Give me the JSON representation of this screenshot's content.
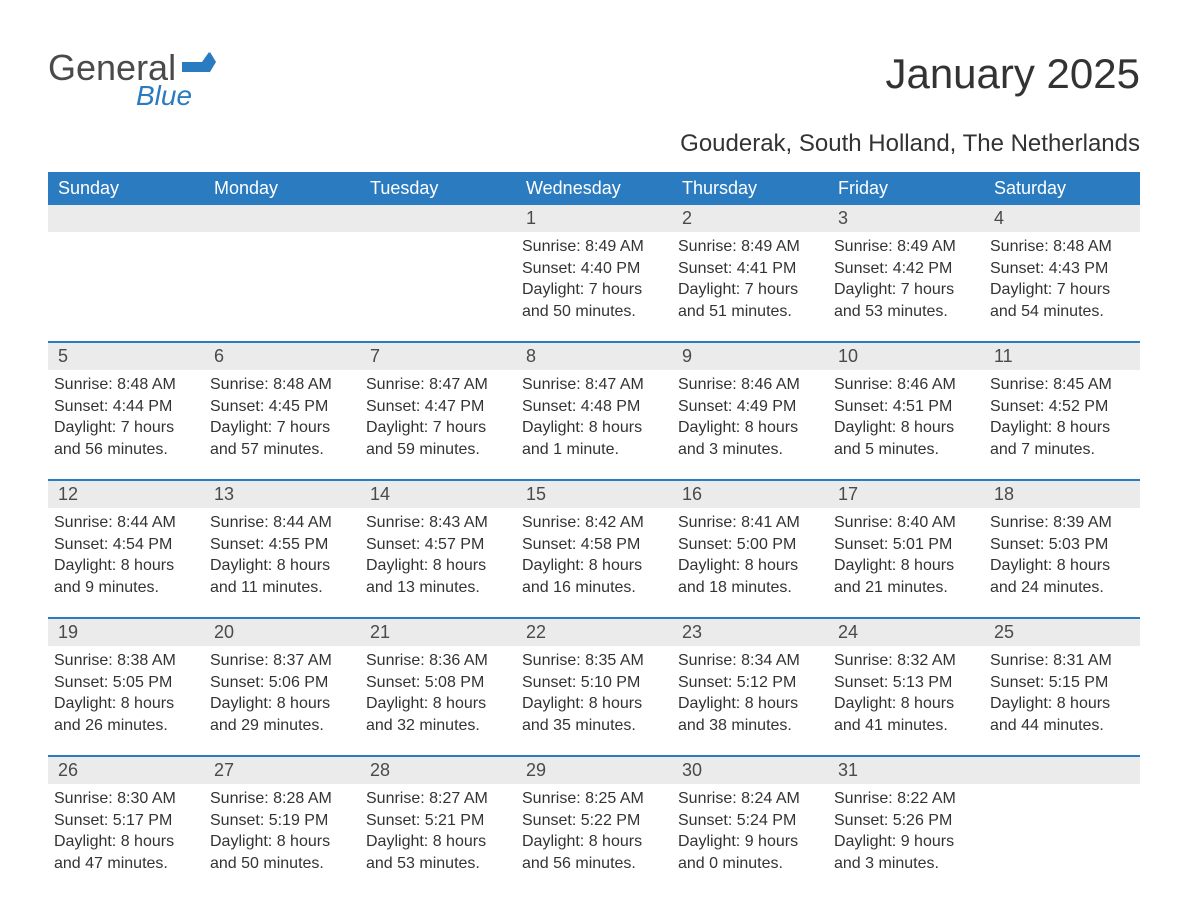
{
  "colors": {
    "header_bg": "#2b7bc0",
    "header_text": "#ffffff",
    "daynum_bg": "#ebebeb",
    "border": "#2b7bc0",
    "body_text": "#333333",
    "logo_gray": "#4a4a4a",
    "logo_blue": "#2b7bc0"
  },
  "typography": {
    "title_fontsize": 42,
    "location_fontsize": 24,
    "dayheader_fontsize": 18,
    "daynum_fontsize": 18,
    "body_fontsize": 16
  },
  "logo": {
    "line1": "General",
    "line2": "Blue"
  },
  "title": "January 2025",
  "location": "Gouderak, South Holland, The Netherlands",
  "day_names": [
    "Sunday",
    "Monday",
    "Tuesday",
    "Wednesday",
    "Thursday",
    "Friday",
    "Saturday"
  ],
  "weeks": [
    [
      {
        "day": "",
        "sunrise": "",
        "sunset": "",
        "daylight": ""
      },
      {
        "day": "",
        "sunrise": "",
        "sunset": "",
        "daylight": ""
      },
      {
        "day": "",
        "sunrise": "",
        "sunset": "",
        "daylight": ""
      },
      {
        "day": "1",
        "sunrise": "Sunrise: 8:49 AM",
        "sunset": "Sunset: 4:40 PM",
        "daylight": "Daylight: 7 hours and 50 minutes."
      },
      {
        "day": "2",
        "sunrise": "Sunrise: 8:49 AM",
        "sunset": "Sunset: 4:41 PM",
        "daylight": "Daylight: 7 hours and 51 minutes."
      },
      {
        "day": "3",
        "sunrise": "Sunrise: 8:49 AM",
        "sunset": "Sunset: 4:42 PM",
        "daylight": "Daylight: 7 hours and 53 minutes."
      },
      {
        "day": "4",
        "sunrise": "Sunrise: 8:48 AM",
        "sunset": "Sunset: 4:43 PM",
        "daylight": "Daylight: 7 hours and 54 minutes."
      }
    ],
    [
      {
        "day": "5",
        "sunrise": "Sunrise: 8:48 AM",
        "sunset": "Sunset: 4:44 PM",
        "daylight": "Daylight: 7 hours and 56 minutes."
      },
      {
        "day": "6",
        "sunrise": "Sunrise: 8:48 AM",
        "sunset": "Sunset: 4:45 PM",
        "daylight": "Daylight: 7 hours and 57 minutes."
      },
      {
        "day": "7",
        "sunrise": "Sunrise: 8:47 AM",
        "sunset": "Sunset: 4:47 PM",
        "daylight": "Daylight: 7 hours and 59 minutes."
      },
      {
        "day": "8",
        "sunrise": "Sunrise: 8:47 AM",
        "sunset": "Sunset: 4:48 PM",
        "daylight": "Daylight: 8 hours and 1 minute."
      },
      {
        "day": "9",
        "sunrise": "Sunrise: 8:46 AM",
        "sunset": "Sunset: 4:49 PM",
        "daylight": "Daylight: 8 hours and 3 minutes."
      },
      {
        "day": "10",
        "sunrise": "Sunrise: 8:46 AM",
        "sunset": "Sunset: 4:51 PM",
        "daylight": "Daylight: 8 hours and 5 minutes."
      },
      {
        "day": "11",
        "sunrise": "Sunrise: 8:45 AM",
        "sunset": "Sunset: 4:52 PM",
        "daylight": "Daylight: 8 hours and 7 minutes."
      }
    ],
    [
      {
        "day": "12",
        "sunrise": "Sunrise: 8:44 AM",
        "sunset": "Sunset: 4:54 PM",
        "daylight": "Daylight: 8 hours and 9 minutes."
      },
      {
        "day": "13",
        "sunrise": "Sunrise: 8:44 AM",
        "sunset": "Sunset: 4:55 PM",
        "daylight": "Daylight: 8 hours and 11 minutes."
      },
      {
        "day": "14",
        "sunrise": "Sunrise: 8:43 AM",
        "sunset": "Sunset: 4:57 PM",
        "daylight": "Daylight: 8 hours and 13 minutes."
      },
      {
        "day": "15",
        "sunrise": "Sunrise: 8:42 AM",
        "sunset": "Sunset: 4:58 PM",
        "daylight": "Daylight: 8 hours and 16 minutes."
      },
      {
        "day": "16",
        "sunrise": "Sunrise: 8:41 AM",
        "sunset": "Sunset: 5:00 PM",
        "daylight": "Daylight: 8 hours and 18 minutes."
      },
      {
        "day": "17",
        "sunrise": "Sunrise: 8:40 AM",
        "sunset": "Sunset: 5:01 PM",
        "daylight": "Daylight: 8 hours and 21 minutes."
      },
      {
        "day": "18",
        "sunrise": "Sunrise: 8:39 AM",
        "sunset": "Sunset: 5:03 PM",
        "daylight": "Daylight: 8 hours and 24 minutes."
      }
    ],
    [
      {
        "day": "19",
        "sunrise": "Sunrise: 8:38 AM",
        "sunset": "Sunset: 5:05 PM",
        "daylight": "Daylight: 8 hours and 26 minutes."
      },
      {
        "day": "20",
        "sunrise": "Sunrise: 8:37 AM",
        "sunset": "Sunset: 5:06 PM",
        "daylight": "Daylight: 8 hours and 29 minutes."
      },
      {
        "day": "21",
        "sunrise": "Sunrise: 8:36 AM",
        "sunset": "Sunset: 5:08 PM",
        "daylight": "Daylight: 8 hours and 32 minutes."
      },
      {
        "day": "22",
        "sunrise": "Sunrise: 8:35 AM",
        "sunset": "Sunset: 5:10 PM",
        "daylight": "Daylight: 8 hours and 35 minutes."
      },
      {
        "day": "23",
        "sunrise": "Sunrise: 8:34 AM",
        "sunset": "Sunset: 5:12 PM",
        "daylight": "Daylight: 8 hours and 38 minutes."
      },
      {
        "day": "24",
        "sunrise": "Sunrise: 8:32 AM",
        "sunset": "Sunset: 5:13 PM",
        "daylight": "Daylight: 8 hours and 41 minutes."
      },
      {
        "day": "25",
        "sunrise": "Sunrise: 8:31 AM",
        "sunset": "Sunset: 5:15 PM",
        "daylight": "Daylight: 8 hours and 44 minutes."
      }
    ],
    [
      {
        "day": "26",
        "sunrise": "Sunrise: 8:30 AM",
        "sunset": "Sunset: 5:17 PM",
        "daylight": "Daylight: 8 hours and 47 minutes."
      },
      {
        "day": "27",
        "sunrise": "Sunrise: 8:28 AM",
        "sunset": "Sunset: 5:19 PM",
        "daylight": "Daylight: 8 hours and 50 minutes."
      },
      {
        "day": "28",
        "sunrise": "Sunrise: 8:27 AM",
        "sunset": "Sunset: 5:21 PM",
        "daylight": "Daylight: 8 hours and 53 minutes."
      },
      {
        "day": "29",
        "sunrise": "Sunrise: 8:25 AM",
        "sunset": "Sunset: 5:22 PM",
        "daylight": "Daylight: 8 hours and 56 minutes."
      },
      {
        "day": "30",
        "sunrise": "Sunrise: 8:24 AM",
        "sunset": "Sunset: 5:24 PM",
        "daylight": "Daylight: 9 hours and 0 minutes."
      },
      {
        "day": "31",
        "sunrise": "Sunrise: 8:22 AM",
        "sunset": "Sunset: 5:26 PM",
        "daylight": "Daylight: 9 hours and 3 minutes."
      },
      {
        "day": "",
        "sunrise": "",
        "sunset": "",
        "daylight": ""
      }
    ]
  ]
}
